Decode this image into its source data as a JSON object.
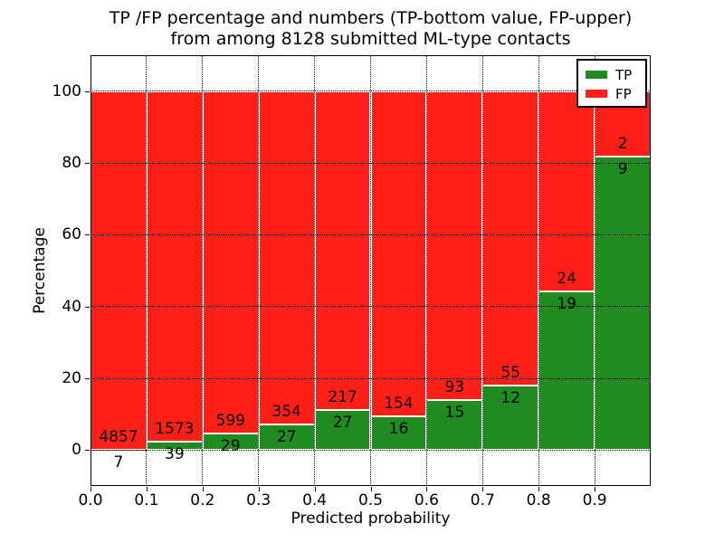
{
  "chart_data": {
    "type": "bar",
    "stacked": true,
    "title_line1": "TP /FP percentage and numbers (TP-bottom value, FP-upper)",
    "title_line2": "from among 8128 submitted ML-type contacts",
    "total_submitted": 8128,
    "xlabel": "Predicted probability",
    "ylabel": "Percentage",
    "categories": [
      "0.0–0.1",
      "0.1–0.2",
      "0.2–0.3",
      "0.3–0.4",
      "0.4–0.5",
      "0.5–0.6",
      "0.6–0.7",
      "0.7–0.8",
      "0.8–0.9",
      "0.9–1.0"
    ],
    "series": [
      {
        "name": "TP",
        "color": "#1e8c1e",
        "counts": [
          7,
          39,
          29,
          27,
          27,
          16,
          15,
          12,
          19,
          9
        ]
      },
      {
        "name": "FP",
        "color": "#ff1f17",
        "counts": [
          4857,
          1573,
          599,
          354,
          217,
          154,
          93,
          55,
          24,
          2
        ]
      }
    ],
    "value_unit": "percent of bin total, stacked to 100",
    "x_tick_labels": [
      "0.0",
      "0.1",
      "0.2",
      "0.3",
      "0.4",
      "0.5",
      "0.6",
      "0.7",
      "0.8",
      "0.9"
    ],
    "y_ticks": [
      0,
      20,
      40,
      60,
      80,
      100
    ],
    "xlim": [
      0.0,
      1.0
    ],
    "ylim": [
      -10,
      110
    ],
    "grid": "dotted-black-both-axes",
    "bar_edge_color": "#ffffff",
    "legend": {
      "position": "upper-right",
      "entries": [
        "TP",
        "FP"
      ]
    }
  }
}
